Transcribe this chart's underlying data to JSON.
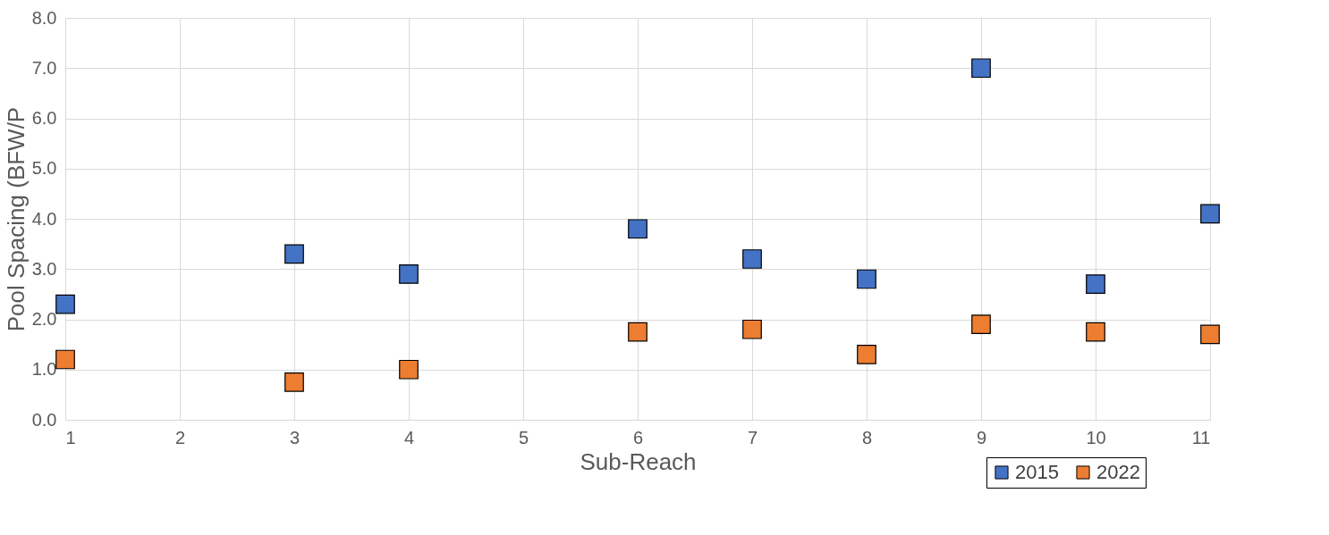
{
  "chart_data": {
    "type": "scatter",
    "xlabel": "Sub-Reach",
    "ylabel": "Pool Spacing (BFW/P",
    "xlim": [
      1,
      11
    ],
    "xticks": [
      1,
      2,
      3,
      4,
      5,
      6,
      7,
      8,
      9,
      10,
      11
    ],
    "ylim": [
      0,
      8
    ],
    "yticks": [
      {
        "value": 0,
        "label": "0.0"
      },
      {
        "value": 1,
        "label": "1.0"
      },
      {
        "value": 2,
        "label": "2.0"
      },
      {
        "value": 3,
        "label": "3.0"
      },
      {
        "value": 4,
        "label": "4.0"
      },
      {
        "value": 5,
        "label": "5.0"
      },
      {
        "value": 6,
        "label": "6.0"
      },
      {
        "value": 7,
        "label": "7.0"
      },
      {
        "value": 8,
        "label": "8.0"
      }
    ],
    "x": [
      1,
      3,
      4,
      6,
      7,
      8,
      9,
      10,
      11
    ],
    "series": [
      {
        "name": "2015",
        "color": "#4472c4",
        "values": [
          2.3,
          3.3,
          2.9,
          3.8,
          3.2,
          2.8,
          7.0,
          2.7,
          4.1
        ]
      },
      {
        "name": "2022",
        "color": "#ed7d31",
        "values": [
          1.2,
          0.75,
          1.0,
          1.75,
          1.8,
          1.3,
          1.9,
          1.75,
          1.7
        ]
      }
    ],
    "marker": "square",
    "grid": true,
    "legend": "bottom right"
  }
}
